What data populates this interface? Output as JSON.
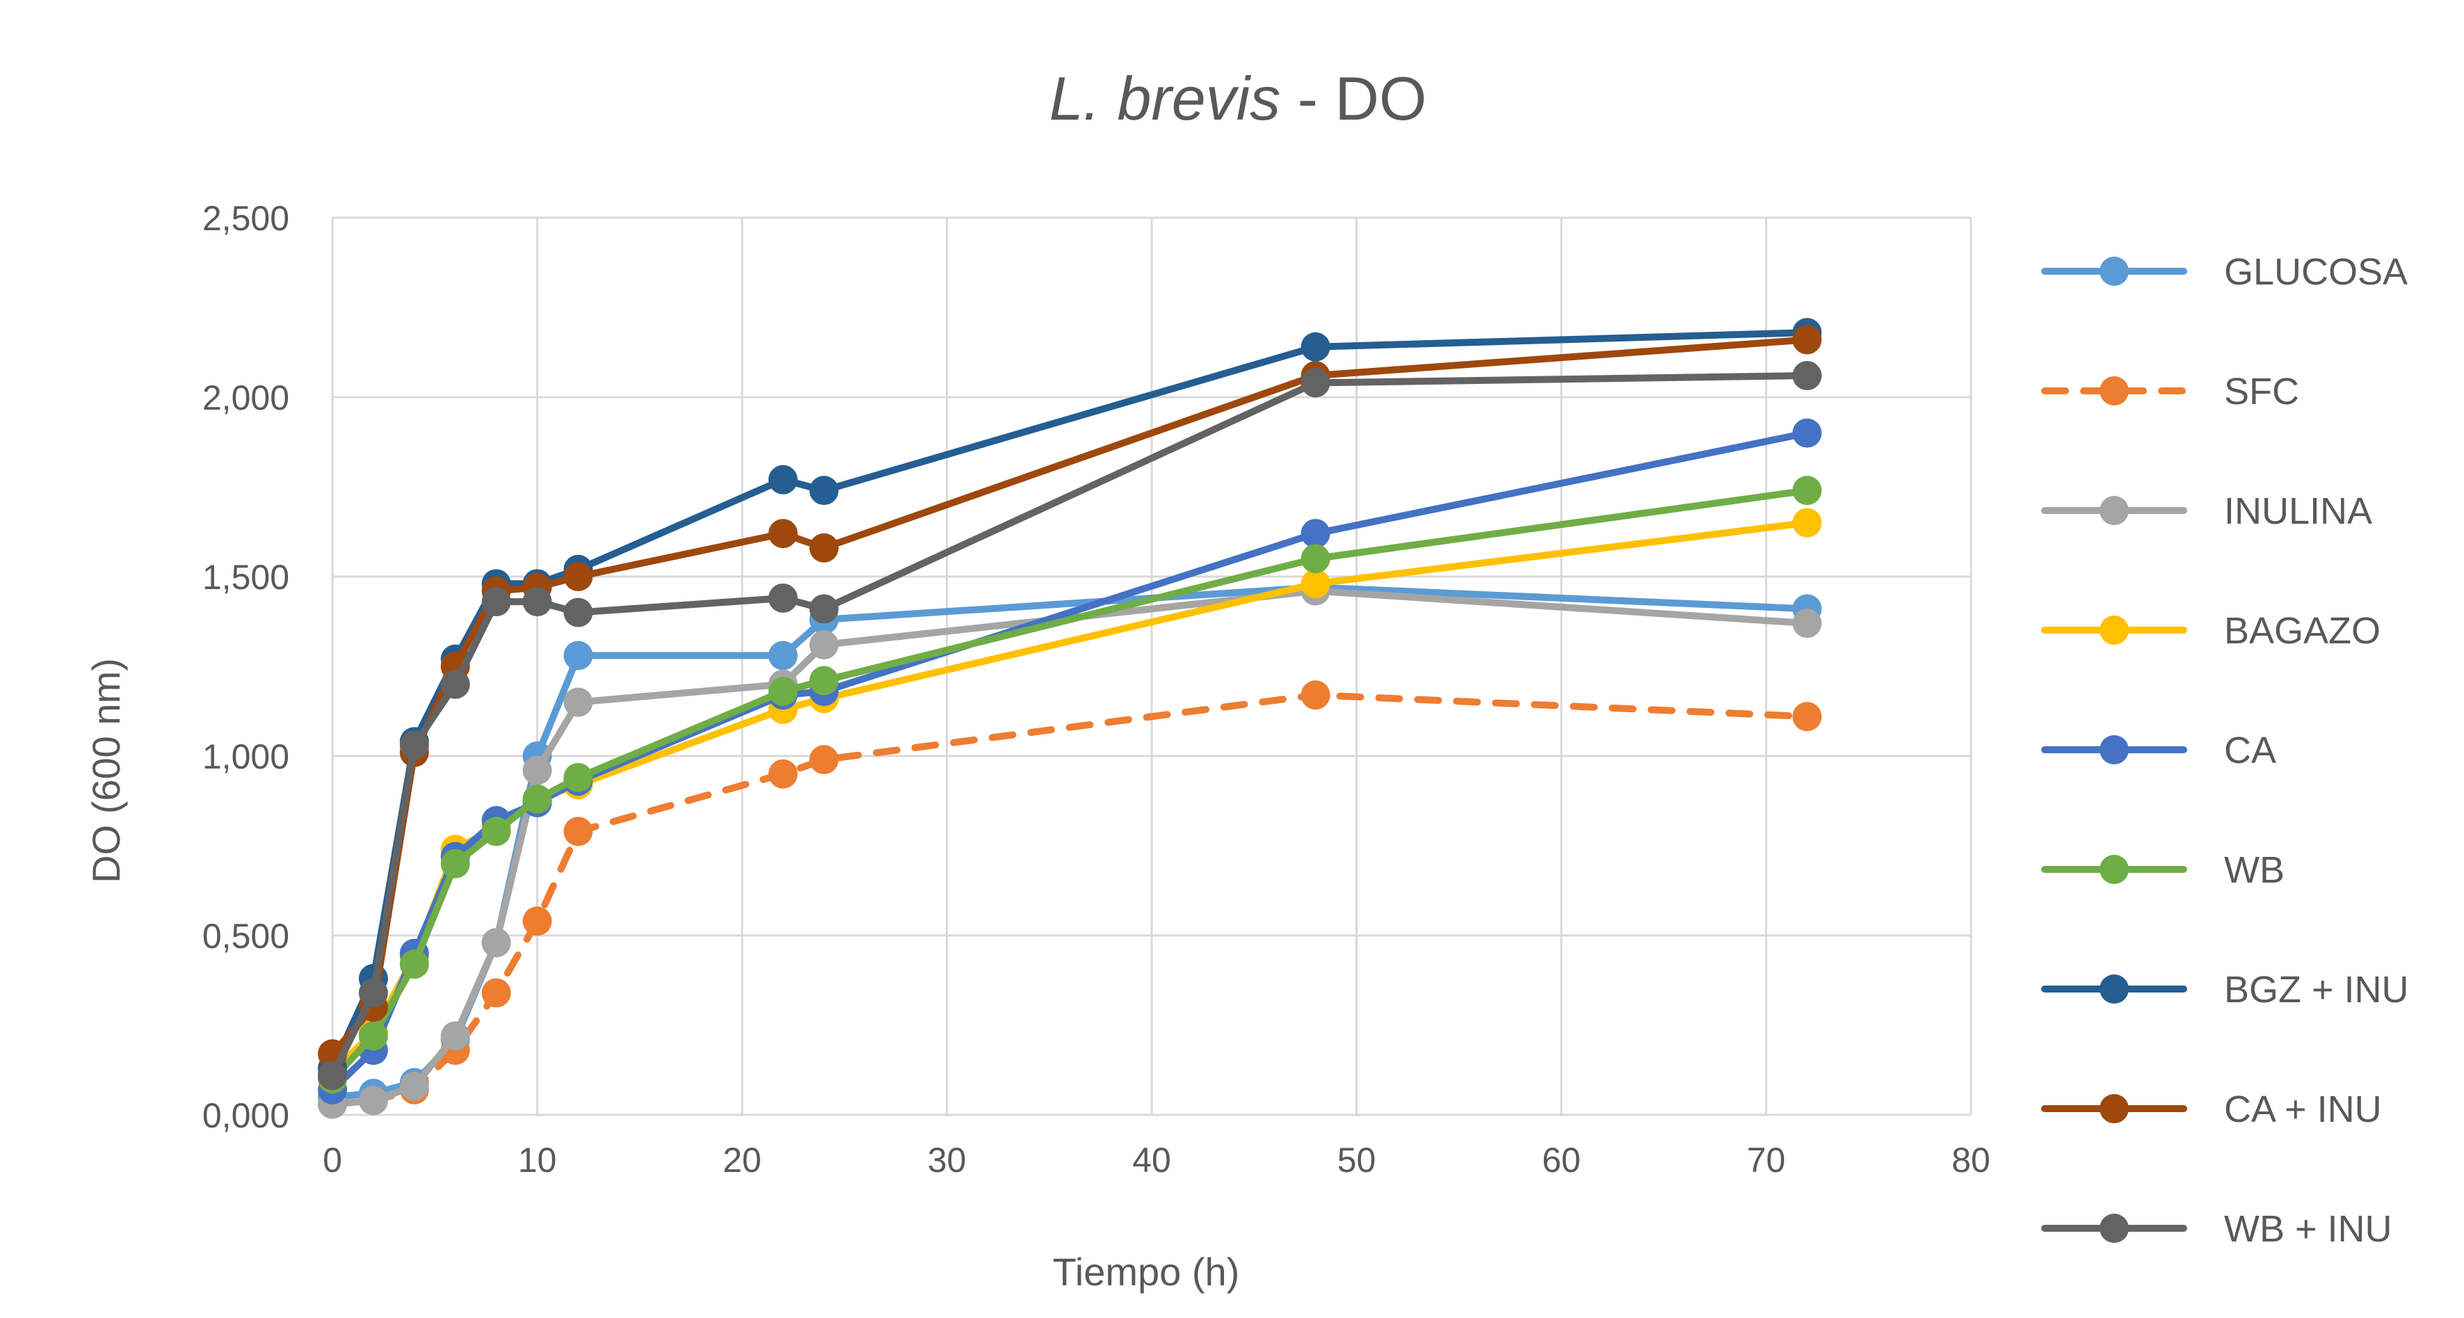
{
  "chart_data": {
    "type": "line",
    "title_italic": "L. brevis",
    "title_rest": " - DO",
    "xlabel": "Tiempo (h)",
    "ylabel": "DO (600 nm)",
    "xlim": [
      0,
      80
    ],
    "ylim": [
      0,
      2.5
    ],
    "x_ticks": [
      0,
      10,
      20,
      30,
      40,
      50,
      60,
      70,
      80
    ],
    "x_tick_labels": [
      "0",
      "10",
      "20",
      "30",
      "40",
      "50",
      "60",
      "70",
      "80"
    ],
    "y_ticks": [
      0,
      0.5,
      1.0,
      1.5,
      2.0,
      2.5
    ],
    "y_tick_labels": [
      "0,000",
      "0,500",
      "1,000",
      "1,500",
      "2,000",
      "2,500"
    ],
    "grid": true,
    "legend_position": "right",
    "x": [
      0,
      2,
      4,
      6,
      8,
      10,
      12,
      22,
      24,
      48,
      72
    ],
    "series": [
      {
        "name": "GLUCOSA",
        "color": "#5B9BD5",
        "dashed": false,
        "values": [
          0.05,
          0.06,
          0.09,
          0.21,
          0.48,
          1.0,
          1.28,
          1.28,
          1.38,
          1.47,
          1.41
        ]
      },
      {
        "name": "SFC",
        "color": "#ED7D31",
        "dashed": true,
        "values": [
          0.03,
          0.04,
          0.07,
          0.18,
          0.34,
          0.54,
          0.79,
          0.95,
          0.99,
          1.17,
          1.11
        ]
      },
      {
        "name": "INULINA",
        "color": "#A5A5A5",
        "dashed": false,
        "values": [
          0.03,
          0.04,
          0.08,
          0.22,
          0.48,
          0.96,
          1.15,
          1.2,
          1.31,
          1.46,
          1.37
        ]
      },
      {
        "name": "BAGAZO",
        "color": "#FFC000",
        "dashed": false,
        "values": [
          0.12,
          0.23,
          0.44,
          0.74,
          0.8,
          0.88,
          0.92,
          1.13,
          1.16,
          1.48,
          1.65
        ]
      },
      {
        "name": "CA",
        "color": "#4472C4",
        "dashed": false,
        "values": [
          0.07,
          0.18,
          0.45,
          0.72,
          0.82,
          0.87,
          0.93,
          1.17,
          1.18,
          1.62,
          1.9
        ]
      },
      {
        "name": "WB",
        "color": "#70AD47",
        "dashed": false,
        "values": [
          0.1,
          0.22,
          0.42,
          0.7,
          0.79,
          0.88,
          0.94,
          1.18,
          1.21,
          1.55,
          1.74
        ]
      },
      {
        "name": "BGZ + INU",
        "color": "#255E91",
        "dashed": false,
        "values": [
          0.13,
          0.38,
          1.04,
          1.27,
          1.48,
          1.48,
          1.52,
          1.77,
          1.74,
          2.14,
          2.18
        ]
      },
      {
        "name": "CA + INU",
        "color": "#9E480E",
        "dashed": false,
        "values": [
          0.17,
          0.3,
          1.01,
          1.25,
          1.46,
          1.47,
          1.5,
          1.62,
          1.58,
          2.06,
          2.16
        ]
      },
      {
        "name": "WB + INU",
        "color": "#636363",
        "dashed": false,
        "values": [
          0.11,
          0.34,
          1.03,
          1.2,
          1.43,
          1.43,
          1.4,
          1.44,
          1.41,
          2.04,
          2.06
        ]
      }
    ]
  }
}
